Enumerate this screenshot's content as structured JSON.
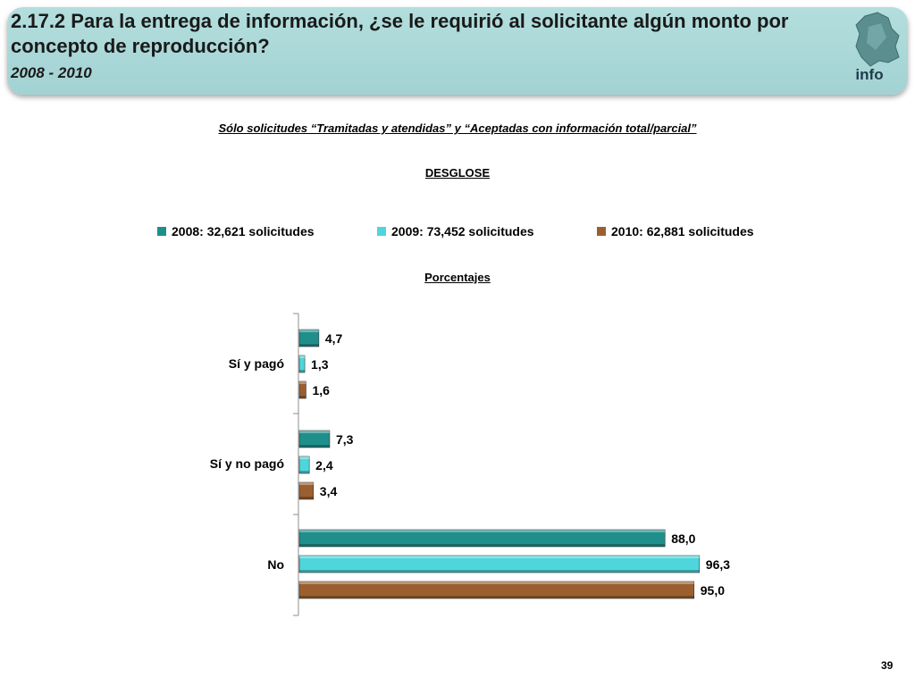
{
  "header": {
    "title": "2.17.2 Para la entrega de información, ¿se le requirió al solicitante algún monto por concepto de reproducción?",
    "years": "2008 - 2010",
    "logo_text": "info"
  },
  "subtitle": "Sólo solicitudes “Tramitadas y atendidas” y “Aceptadas con información total/parcial”",
  "section_label": "DESGLOSE",
  "units_label": "Porcentajes",
  "page_number": "39",
  "colors": {
    "s2008": "#1f8f8b",
    "s2009": "#4ed6dc",
    "s2010": "#9b5f2f"
  },
  "chart_data": {
    "type": "bar",
    "orientation": "horizontal",
    "categories": [
      "Sí y pagó",
      "Sí y no pagó",
      "No"
    ],
    "series": [
      {
        "name": "2008: 32,621 solicitudes",
        "values": [
          4.7,
          7.3,
          88.0
        ],
        "labels": [
          "4,7",
          "7,3",
          "88,0"
        ]
      },
      {
        "name": "2009: 73,452 solicitudes",
        "values": [
          1.3,
          2.4,
          96.3
        ],
        "labels": [
          "1,3",
          "2,4",
          "96,3"
        ]
      },
      {
        "name": "2010: 62,881 solicitudes",
        "values": [
          1.6,
          3.4,
          95.0
        ],
        "labels": [
          "1,6",
          "3,4",
          "95,0"
        ]
      }
    ],
    "xlim": [
      0,
      100
    ],
    "xlabel": "Porcentajes",
    "legend_position": "top",
    "grid": false
  }
}
